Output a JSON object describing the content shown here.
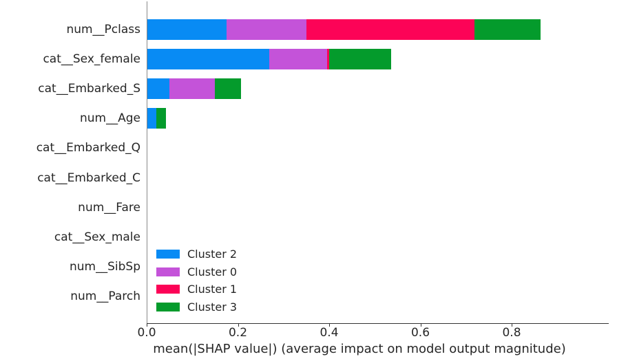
{
  "chart_data": {
    "type": "bar",
    "orientation": "horizontal",
    "stacked": true,
    "title": "",
    "xlabel": "mean(|SHAP value|) (average impact on model output magnitude)",
    "ylabel": "",
    "xlim": [
      0,
      1.01
    ],
    "x_tick_values": [
      0.0,
      0.2,
      0.4,
      0.6,
      0.8
    ],
    "x_tick_labels": [
      "0.0",
      "0.2",
      "0.4",
      "0.6",
      "0.8"
    ],
    "grid": false,
    "legend_position": "inside lower-left of plot, no frame",
    "categories": [
      "num__Pclass",
      "cat__Sex_female",
      "cat__Embarked_S",
      "num__Age",
      "cat__Embarked_Q",
      "cat__Embarked_C",
      "num__Fare",
      "cat__Sex_male",
      "num__SibSp",
      "num__Parch"
    ],
    "series": [
      {
        "name": "Cluster 2",
        "color": "#088bf4",
        "values": [
          0.174,
          0.267,
          0.049,
          0.02,
          0,
          0,
          0,
          0,
          0,
          0
        ]
      },
      {
        "name": "Cluster 0",
        "color": "#c453d9",
        "values": [
          0.175,
          0.128,
          0.1,
          0,
          0,
          0,
          0,
          0,
          0,
          0
        ]
      },
      {
        "name": "Cluster 1",
        "color": "#fc0357",
        "values": [
          0.369,
          0.0045,
          0,
          0,
          0,
          0,
          0,
          0,
          0,
          0
        ]
      },
      {
        "name": "Cluster 3",
        "color": "#049b2c",
        "values": [
          0.144,
          0.136,
          0.057,
          0.021,
          0,
          0,
          0,
          0,
          0,
          0
        ]
      }
    ]
  }
}
